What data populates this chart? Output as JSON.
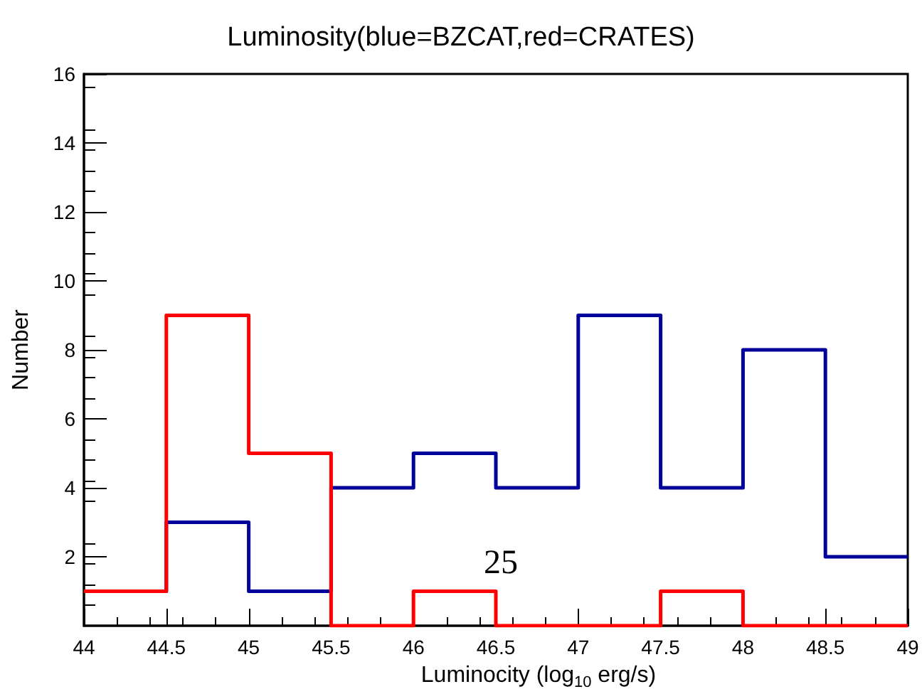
{
  "chart_data": {
    "type": "histogram",
    "title": "Luminosity(blue=BZCAT,red=CRATES)",
    "xlabel": "Luminocity (log$_{10}$ erg/s)",
    "ylabel": "Number",
    "bins": [
      44,
      44.5,
      45,
      45.5,
      46,
      46.5,
      47,
      47.5,
      48,
      48.5,
      49
    ],
    "series": [
      {
        "color": "#00009a",
        "values": [
          1,
          3,
          1,
          4,
          5,
          4,
          9,
          4,
          8,
          2
        ]
      },
      {
        "color": "#ff0000",
        "values": [
          1,
          9,
          5,
          0,
          1,
          0,
          0,
          1,
          0,
          0
        ]
      }
    ],
    "xlim": [
      44,
      49
    ],
    "xticks": [
      44,
      44.5,
      45,
      45.5,
      46,
      46.5,
      47,
      47.5,
      48,
      48.5,
      49
    ],
    "ylim": [
      0,
      16
    ],
    "yticks": [
      2,
      4,
      6,
      8,
      10,
      12,
      14,
      16
    ],
    "annotations": [
      "25"
    ]
  }
}
